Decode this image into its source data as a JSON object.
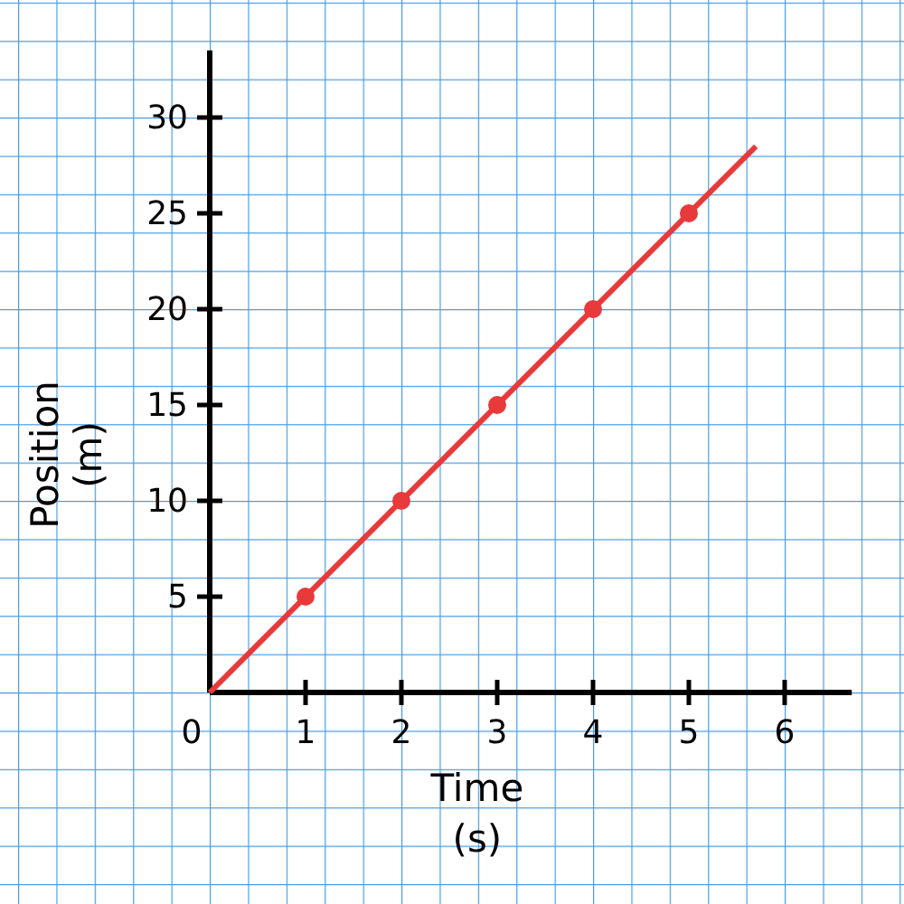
{
  "chart_data": {
    "type": "line",
    "xlabel": "Time\n(s)",
    "ylabel": "Position\n(m)",
    "xlim": [
      0,
      6.7
    ],
    "ylim": [
      0,
      33.5
    ],
    "xticks": [
      {
        "value": 0,
        "label": "0"
      },
      1,
      2,
      3,
      4,
      5,
      6
    ],
    "yticks": [
      5,
      10,
      15,
      20,
      25,
      30
    ],
    "grid": false,
    "series": [
      {
        "color": "#e8393b",
        "x": [
          0,
          5.7
        ],
        "values": [
          0,
          28.5
        ],
        "marker": "none"
      },
      {
        "type": "scatter",
        "color": "#e8393b",
        "x": [
          1,
          2,
          3,
          4,
          5
        ],
        "values": [
          5,
          10,
          15,
          20,
          25
        ],
        "marker": "circle"
      }
    ]
  }
}
